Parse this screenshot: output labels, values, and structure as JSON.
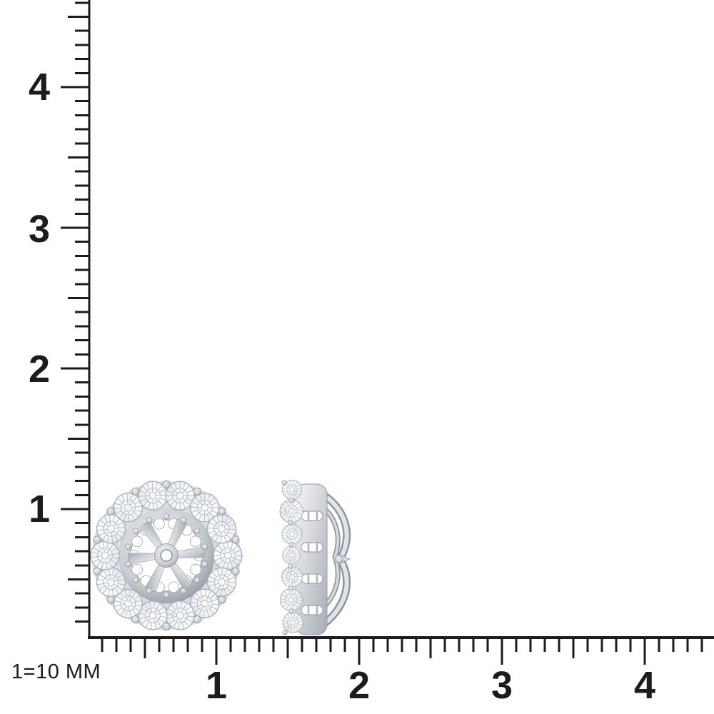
{
  "scale_note": "1=10 MM",
  "ruler": {
    "vertical_labels": [
      "1",
      "2",
      "3",
      "4"
    ],
    "horizontal_labels": [
      "1",
      "2",
      "3",
      "4"
    ]
  },
  "colors": {
    "background": "#ffffff",
    "ink": "#1c1c1c",
    "metal_light": "#f3f4f6",
    "metal_mid": "#c9cdd3",
    "metal_dark": "#8f959d",
    "stone_facet_line": "#b0b7bf",
    "stone_fill": "#ffffff"
  },
  "objects": {
    "front_view": "earring-jacket-front-view",
    "side_view": "earring-jacket-side-view",
    "halo_stone_count": 14,
    "side_stone_count": 7,
    "spoke_count": 6
  }
}
